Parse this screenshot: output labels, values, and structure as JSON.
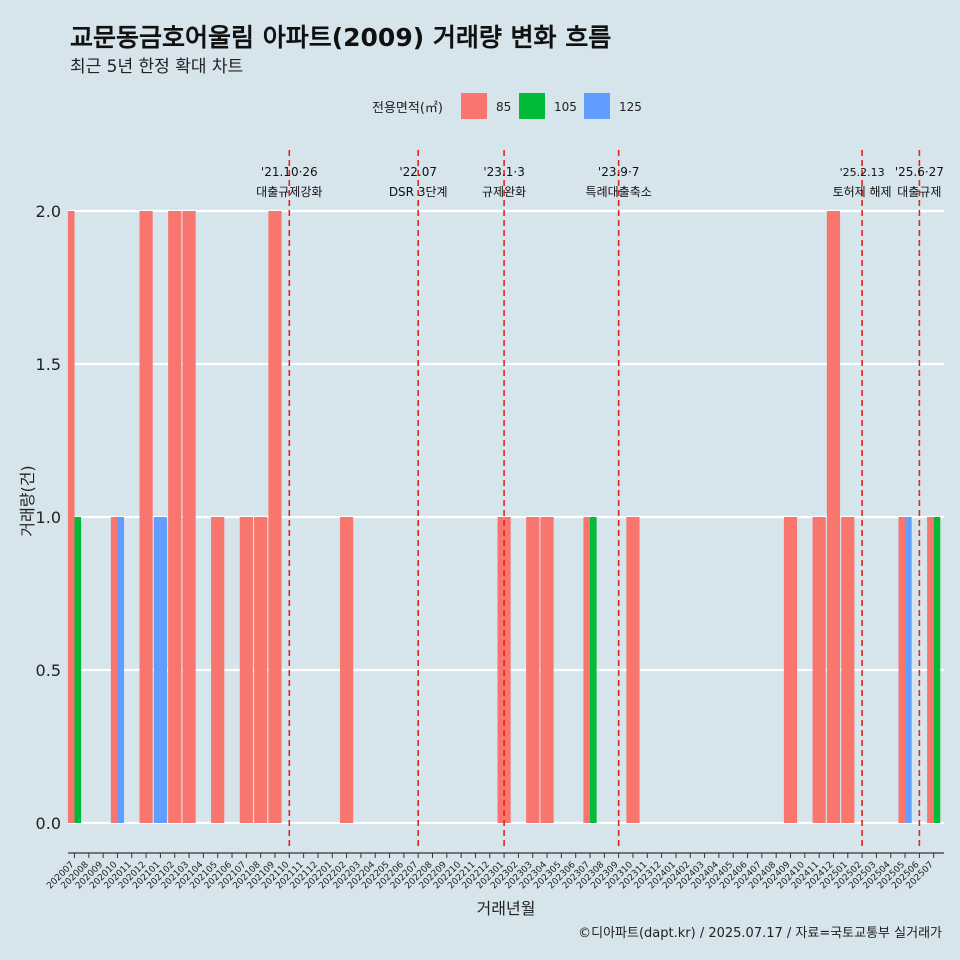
{
  "header": {
    "title": "교문동금호어울림 아파트(2009) 거래량 변화 흐름",
    "subtitle": "최근 5년 한정 확대 차트"
  },
  "footer": {
    "caption": "©디아파트(dapt.kr) / 2025.07.17 / 자료=국토교통부 실거래가"
  },
  "chart_data": {
    "type": "bar",
    "xlabel": "거래년월",
    "ylabel": "거래량(건)",
    "ylim": [
      0,
      2.0
    ],
    "yticks": [
      "0.0",
      "0.5",
      "1.0",
      "1.5",
      "2.0"
    ],
    "grid": true,
    "legend": {
      "title": "전용면적(㎡)",
      "position": "top"
    },
    "categories": [
      "202007",
      "202008",
      "202009",
      "202010",
      "202011",
      "202012",
      "202101",
      "202102",
      "202103",
      "202104",
      "202105",
      "202106",
      "202107",
      "202108",
      "202109",
      "202110",
      "202111",
      "202112",
      "202201",
      "202202",
      "202203",
      "202204",
      "202205",
      "202206",
      "202207",
      "202208",
      "202209",
      "202210",
      "202211",
      "202212",
      "202301",
      "202302",
      "202303",
      "202304",
      "202305",
      "202306",
      "202307",
      "202308",
      "202309",
      "202310",
      "202311",
      "202312",
      "202401",
      "202402",
      "202403",
      "202404",
      "202405",
      "202406",
      "202407",
      "202408",
      "202409",
      "202410",
      "202411",
      "202412",
      "202501",
      "202502",
      "202503",
      "202504",
      "202505",
      "202506",
      "202507"
    ],
    "series": [
      {
        "name": "85",
        "color": "#f8766d",
        "values": [
          2,
          0,
          0,
          1,
          0,
          2,
          0,
          2,
          2,
          0,
          1,
          0,
          1,
          1,
          2,
          0,
          0,
          0,
          0,
          1,
          0,
          0,
          0,
          0,
          0,
          0,
          0,
          0,
          0,
          0,
          1,
          0,
          1,
          1,
          0,
          0,
          1,
          0,
          0,
          1,
          0,
          0,
          0,
          0,
          0,
          0,
          0,
          0,
          0,
          0,
          1,
          0,
          1,
          2,
          1,
          0,
          0,
          0,
          1,
          0,
          1
        ]
      },
      {
        "name": "105",
        "color": "#00ba38",
        "values": [
          1,
          0,
          0,
          0,
          0,
          0,
          0,
          0,
          0,
          0,
          0,
          0,
          0,
          0,
          0,
          0,
          0,
          0,
          0,
          0,
          0,
          0,
          0,
          0,
          0,
          0,
          0,
          0,
          0,
          0,
          0,
          0,
          0,
          0,
          0,
          0,
          1,
          0,
          0,
          0,
          0,
          0,
          0,
          0,
          0,
          0,
          0,
          0,
          0,
          0,
          0,
          0,
          0,
          0,
          0,
          0,
          0,
          0,
          0,
          0,
          1
        ]
      },
      {
        "name": "125",
        "color": "#619cff",
        "values": [
          0,
          0,
          0,
          1,
          0,
          0,
          1,
          0,
          0,
          0,
          0,
          0,
          0,
          0,
          0,
          0,
          0,
          0,
          0,
          0,
          0,
          0,
          0,
          0,
          0,
          0,
          0,
          0,
          0,
          0,
          0,
          0,
          0,
          0,
          0,
          0,
          0,
          0,
          0,
          0,
          0,
          0,
          0,
          0,
          0,
          0,
          0,
          0,
          0,
          0,
          0,
          0,
          0,
          0,
          0,
          0,
          0,
          0,
          1,
          0,
          0
        ]
      }
    ],
    "annotations": [
      {
        "month": "202110",
        "date": "'21.10·26",
        "label": "대출규제강화"
      },
      {
        "month": "202207",
        "date": "'22.07",
        "label": "DSR 3단계"
      },
      {
        "month": "202301",
        "date": "'23.1·3",
        "label": "규제완화"
      },
      {
        "month": "202309",
        "date": "'23.9·7",
        "label": "특례대출축소"
      },
      {
        "month": "202502",
        "date": "'25.2.13",
        "label": "토허제 해제"
      },
      {
        "month": "202506",
        "date": "'25.6·27",
        "label": "대출규제"
      }
    ]
  }
}
